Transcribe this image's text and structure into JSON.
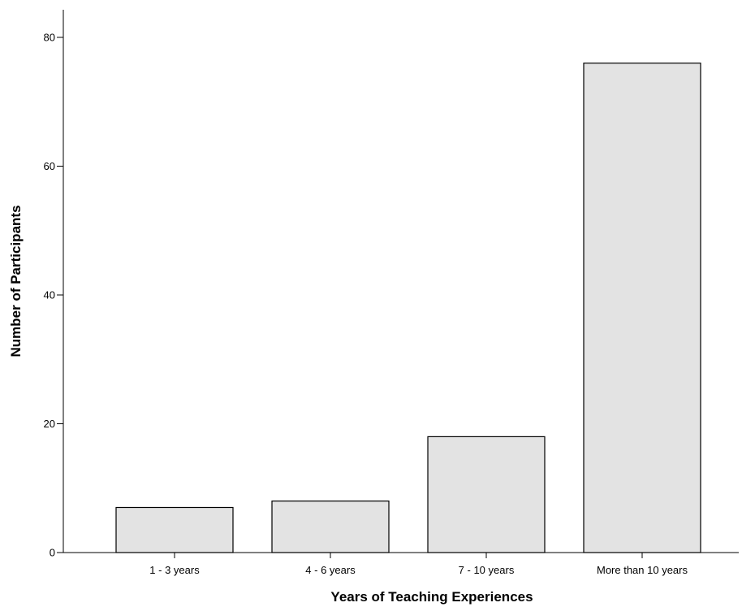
{
  "chart_data": {
    "type": "bar",
    "title": "",
    "xlabel": "Years of Teaching Experiences",
    "ylabel": "Number of Participants",
    "categories": [
      "1 - 3 years",
      "4 - 6 years",
      "7 - 10 years",
      "More than 10 years"
    ],
    "values": [
      7,
      8,
      18,
      76
    ],
    "ylim": [
      0,
      84
    ],
    "yticks": [
      0,
      20,
      40,
      60,
      80
    ],
    "grid": false,
    "legend": "none",
    "colors": {
      "bar_fill": "#e3e3e3",
      "bar_stroke": "#000000",
      "axis": "#000000"
    }
  }
}
